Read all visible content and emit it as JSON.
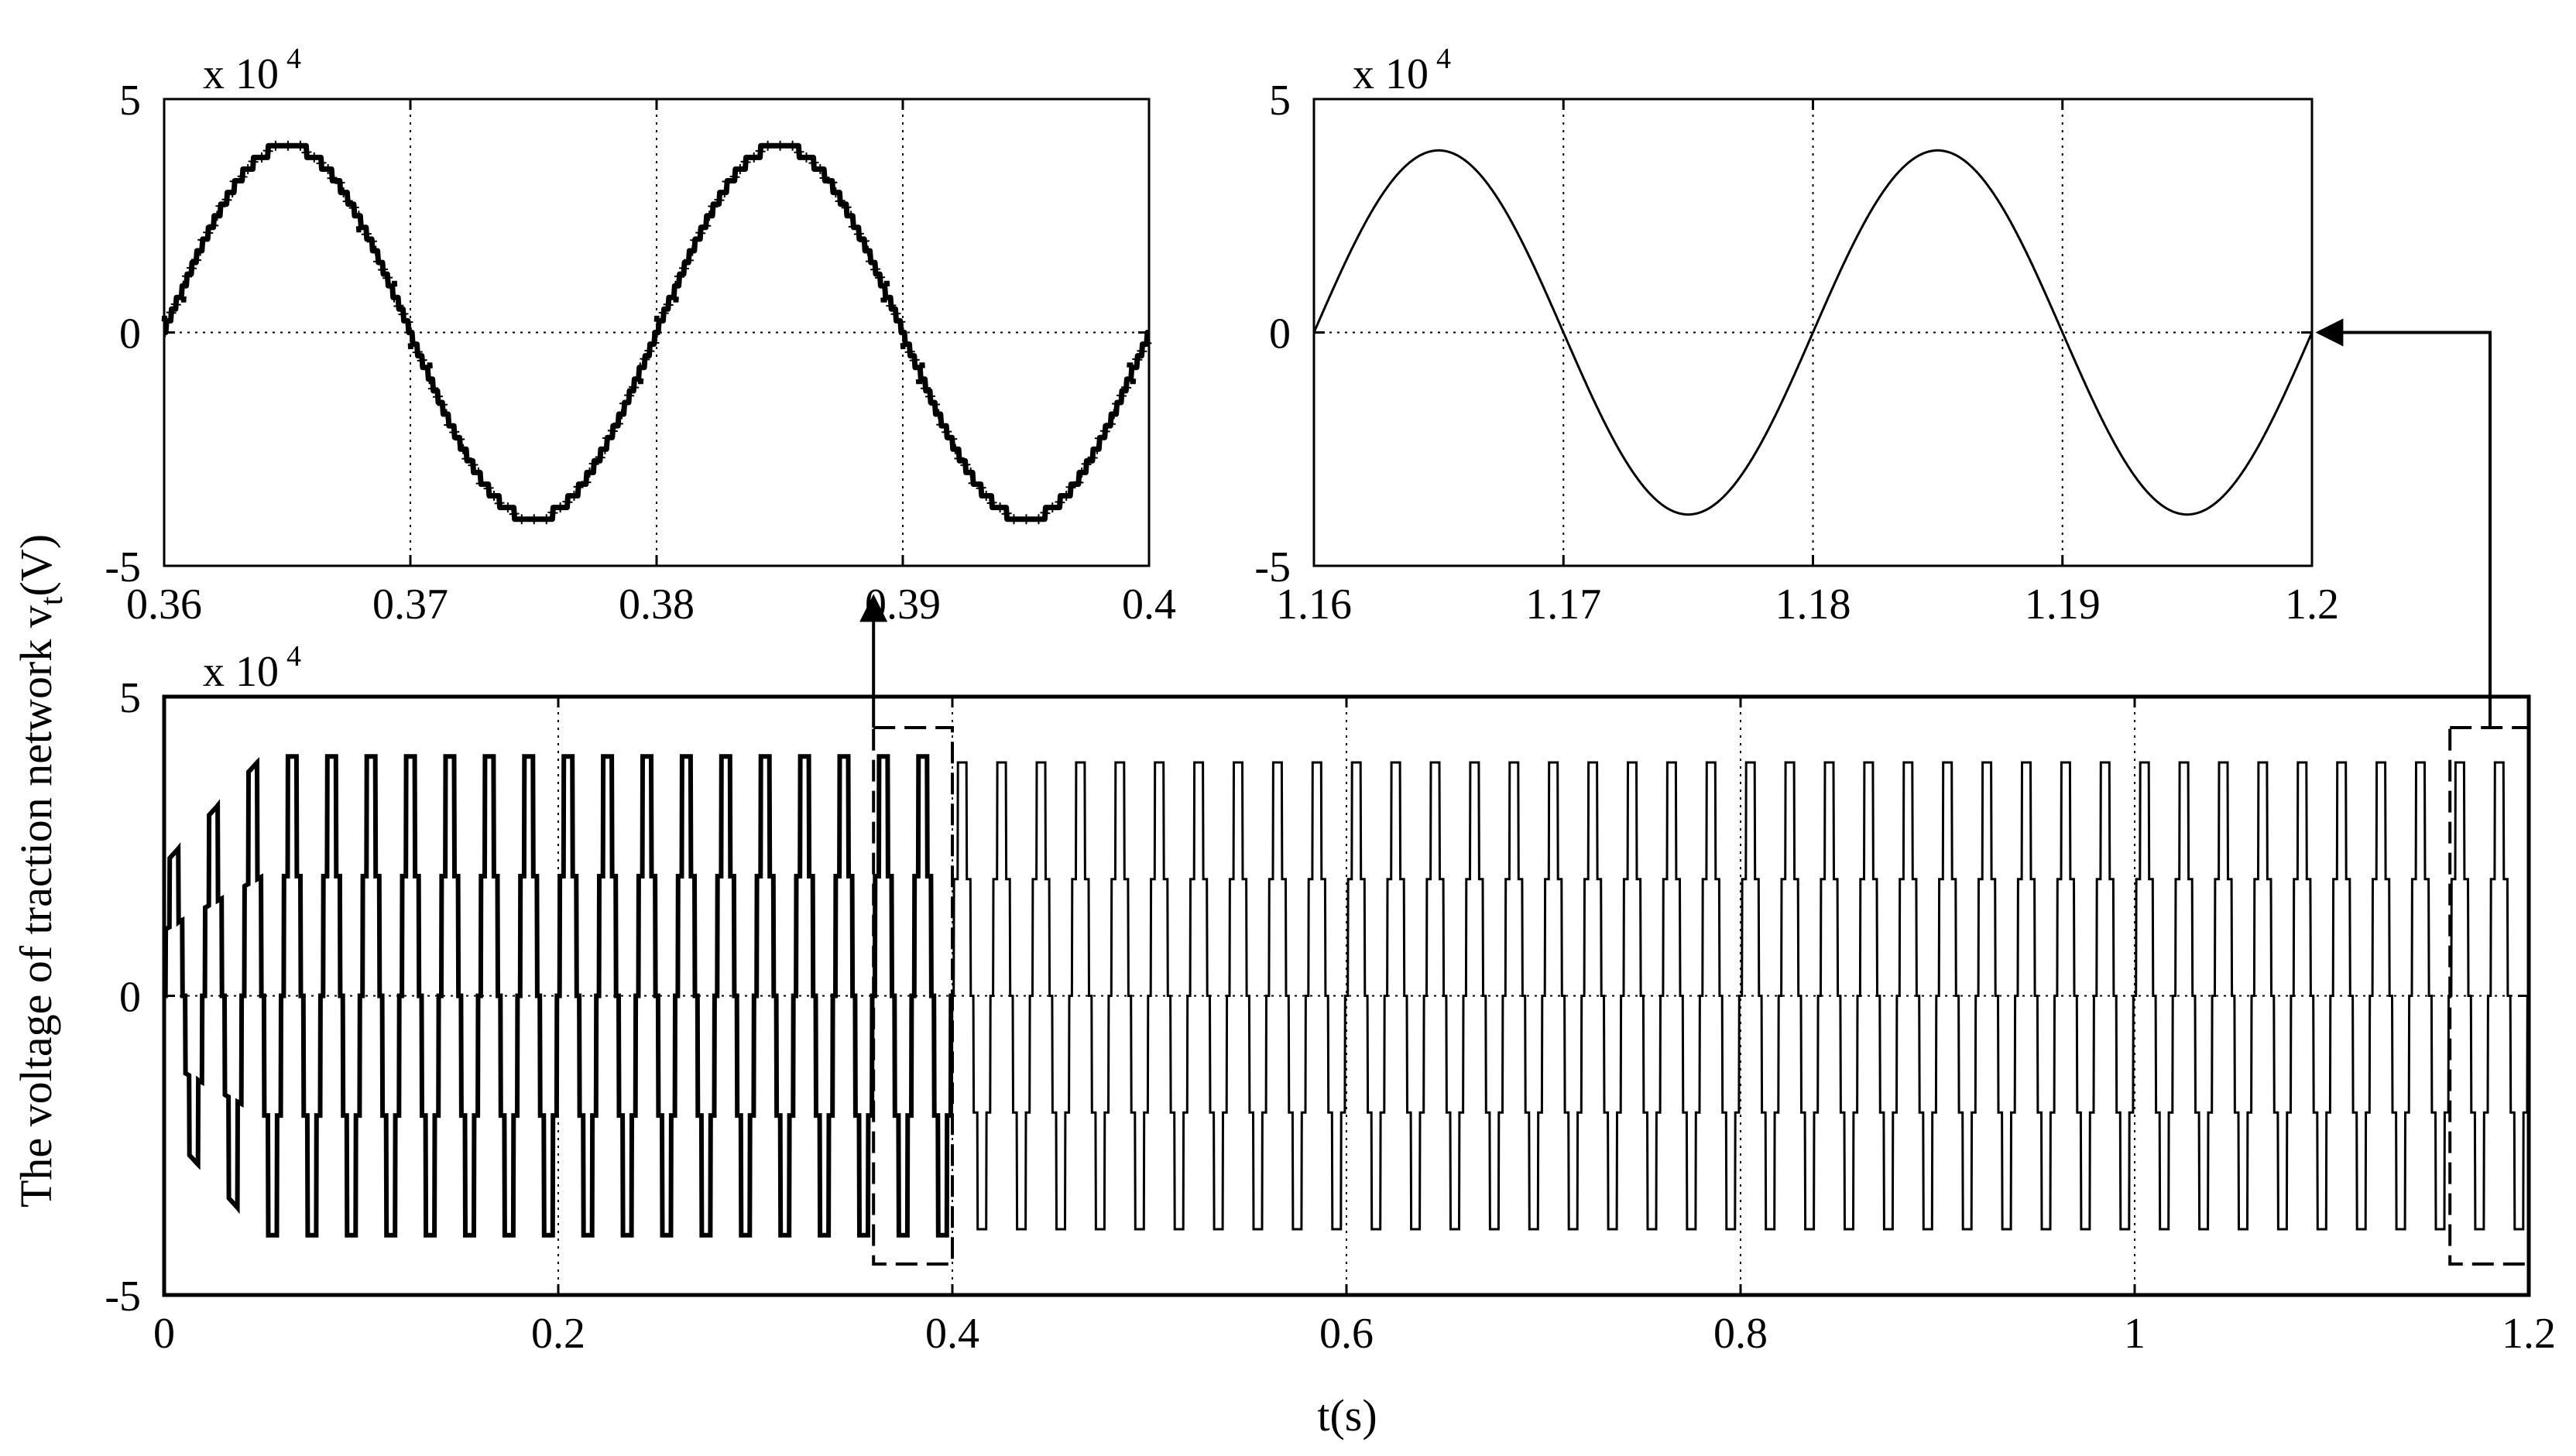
{
  "figure": {
    "ylabel_main": "The voltage of traction network v",
    "ylabel_sub": "t",
    "ylabel_unit": "(V)",
    "xlabel": "t(s)"
  },
  "chart_data": [
    {
      "id": "zoom-left",
      "type": "line",
      "xlim": [
        0.36,
        0.4
      ],
      "ylim": [
        -50000,
        50000
      ],
      "x_ticks": [
        0.36,
        0.37,
        0.38,
        0.39,
        0.4
      ],
      "x_tick_labels": [
        "0.36",
        "0.37",
        "0.38",
        "0.39",
        "0.4"
      ],
      "y_ticks": [
        -50000,
        0,
        50000
      ],
      "y_tick_labels": [
        "-5",
        "0",
        "5"
      ],
      "y_multiplier": {
        "base": "x 10",
        "exp": "4"
      },
      "grid": true,
      "series": [
        {
          "amplitude": 40000,
          "frequency_hz": 50,
          "phase_rad": 0,
          "staircase_step": 2500,
          "line": "thick-black"
        }
      ]
    },
    {
      "id": "zoom-right",
      "type": "line",
      "xlim": [
        1.16,
        1.2
      ],
      "ylim": [
        -50000,
        50000
      ],
      "x_ticks": [
        1.16,
        1.17,
        1.18,
        1.19,
        1.2
      ],
      "x_tick_labels": [
        "1.16",
        "1.17",
        "1.18",
        "1.19",
        "1.2"
      ],
      "y_ticks": [
        -50000,
        0,
        50000
      ],
      "y_tick_labels": [
        "-5",
        "0",
        "5"
      ],
      "y_multiplier": {
        "base": "x 10",
        "exp": "4"
      },
      "grid": true,
      "series": [
        {
          "amplitude": 39000,
          "frequency_hz": 50,
          "phase_rad": 0,
          "staircase_step": 0,
          "line": "thin-black"
        }
      ]
    },
    {
      "id": "main",
      "type": "line",
      "xlim": [
        0,
        1.2
      ],
      "ylim": [
        -50000,
        50000
      ],
      "x_ticks": [
        0,
        0.2,
        0.4,
        0.6,
        0.8,
        1,
        1.2
      ],
      "x_tick_labels": [
        "0",
        "0.2",
        "0.4",
        "0.6",
        "0.8",
        "1",
        "1.2"
      ],
      "y_ticks": [
        -50000,
        0,
        50000
      ],
      "y_tick_labels": [
        "-5",
        "0",
        "5"
      ],
      "y_multiplier": {
        "base": "x 10",
        "exp": "4"
      },
      "grid": true,
      "series": [
        {
          "segments": [
            {
              "t_start": 0,
              "t_end": 0.4,
              "amplitude": 40000,
              "frequency_hz": 50,
              "line": "thick-black"
            },
            {
              "t_start": 0.4,
              "t_end": 1.2,
              "amplitude": 39000,
              "frequency_hz": 50,
              "line": "thin-black"
            }
          ]
        }
      ],
      "zoom_regions": [
        {
          "x_start": 0.36,
          "x_end": 0.4,
          "target": "zoom-left"
        },
        {
          "x_start": 1.16,
          "x_end": 1.2,
          "target": "zoom-right"
        }
      ]
    }
  ]
}
